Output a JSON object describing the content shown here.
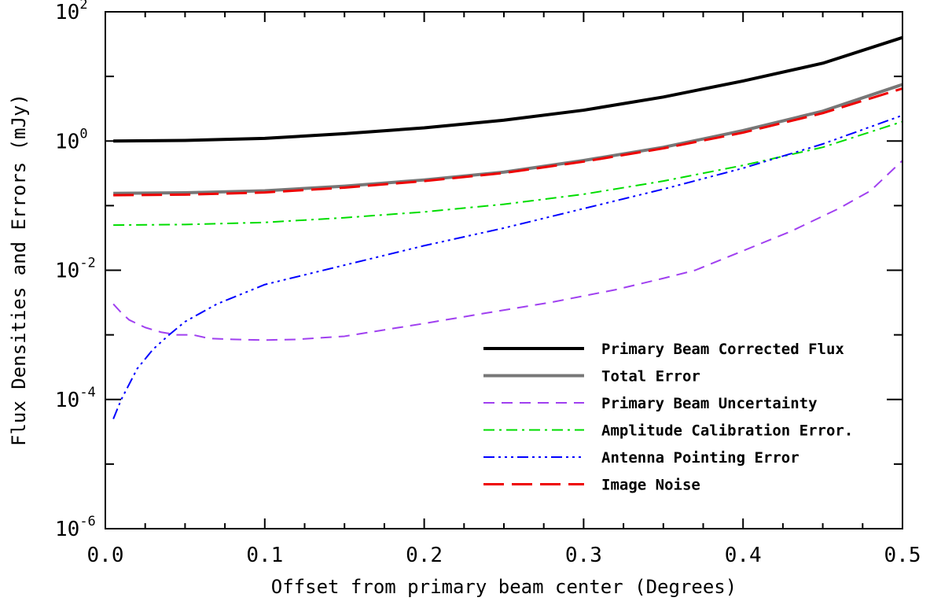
{
  "chart_data": {
    "type": "line",
    "title": "",
    "xlabel": "Offset from primary beam center (Degrees)",
    "ylabel": "Flux Densities and Errors (mJy)",
    "xlim": [
      0.0,
      0.5
    ],
    "ylim": [
      1e-06,
      100
    ],
    "yscale": "log",
    "grid": false,
    "legend_position": "bottom-right",
    "x_ticks": [
      {
        "value": 0.0,
        "label": "0.0"
      },
      {
        "value": 0.1,
        "label": "0.1"
      },
      {
        "value": 0.2,
        "label": "0.2"
      },
      {
        "value": 0.3,
        "label": "0.3"
      },
      {
        "value": 0.4,
        "label": "0.4"
      },
      {
        "value": 0.5,
        "label": "0.5"
      }
    ],
    "y_ticks": [
      {
        "value": 1e-06,
        "base": "10",
        "exp": "-6"
      },
      {
        "value": 0.0001,
        "base": "10",
        "exp": "-4"
      },
      {
        "value": 0.01,
        "base": "10",
        "exp": "-2"
      },
      {
        "value": 1,
        "base": "10",
        "exp": "0"
      },
      {
        "value": 100,
        "base": "10",
        "exp": "2"
      }
    ],
    "series": [
      {
        "name": "Primary Beam Corrected Flux",
        "color": "#000000",
        "style": "solid",
        "x": [
          0.005,
          0.05,
          0.1,
          0.15,
          0.2,
          0.25,
          0.3,
          0.35,
          0.4,
          0.45,
          0.5
        ],
        "y": [
          1.0,
          1.02,
          1.1,
          1.3,
          1.6,
          2.1,
          3.0,
          4.8,
          8.5,
          16,
          40
        ]
      },
      {
        "name": "Total Error",
        "color": "#777777",
        "style": "solid",
        "x": [
          0.005,
          0.05,
          0.1,
          0.15,
          0.2,
          0.25,
          0.3,
          0.35,
          0.4,
          0.45,
          0.5
        ],
        "y": [
          0.155,
          0.158,
          0.17,
          0.2,
          0.25,
          0.33,
          0.5,
          0.8,
          1.45,
          2.9,
          7.5
        ]
      },
      {
        "name": "Primary Beam Uncertainty",
        "color": "#a040f0",
        "style": "dash",
        "x": [
          0.005,
          0.01,
          0.015,
          0.025,
          0.035,
          0.045,
          0.055,
          0.065,
          0.08,
          0.1,
          0.12,
          0.15,
          0.18,
          0.2,
          0.24,
          0.28,
          0.3,
          0.32,
          0.35,
          0.37,
          0.4,
          0.43,
          0.46,
          0.48,
          0.5
        ],
        "y": [
          0.003,
          0.0022,
          0.0017,
          0.0013,
          0.0011,
          0.001,
          0.001,
          0.00088,
          0.00085,
          0.00083,
          0.00085,
          0.00095,
          0.00125,
          0.0015,
          0.0022,
          0.0032,
          0.004,
          0.005,
          0.0075,
          0.01,
          0.02,
          0.04,
          0.09,
          0.17,
          0.5
        ]
      },
      {
        "name": "Amplitude Calibration Error.",
        "color": "#00dd00",
        "style": "dashdot",
        "x": [
          0.005,
          0.05,
          0.1,
          0.15,
          0.2,
          0.25,
          0.3,
          0.35,
          0.4,
          0.45,
          0.5
        ],
        "y": [
          0.05,
          0.051,
          0.055,
          0.065,
          0.08,
          0.105,
          0.15,
          0.24,
          0.42,
          0.8,
          2.0
        ]
      },
      {
        "name": "Antenna Pointing Error",
        "color": "#0000ff",
        "style": "dashdotdot",
        "x": [
          0.005,
          0.01,
          0.02,
          0.03,
          0.04,
          0.05,
          0.07,
          0.1,
          0.15,
          0.2,
          0.25,
          0.3,
          0.35,
          0.4,
          0.45,
          0.5
        ],
        "y": [
          5e-05,
          0.0001,
          0.0003,
          0.0006,
          0.001,
          0.0016,
          0.003,
          0.006,
          0.012,
          0.024,
          0.045,
          0.09,
          0.18,
          0.38,
          0.9,
          2.5
        ]
      },
      {
        "name": "Image Noise",
        "color": "#ee0000",
        "style": "longdash",
        "x": [
          0.005,
          0.05,
          0.1,
          0.15,
          0.2,
          0.25,
          0.3,
          0.35,
          0.4,
          0.45,
          0.5
        ],
        "y": [
          0.145,
          0.148,
          0.16,
          0.19,
          0.24,
          0.32,
          0.48,
          0.77,
          1.35,
          2.7,
          6.5
        ]
      }
    ]
  }
}
